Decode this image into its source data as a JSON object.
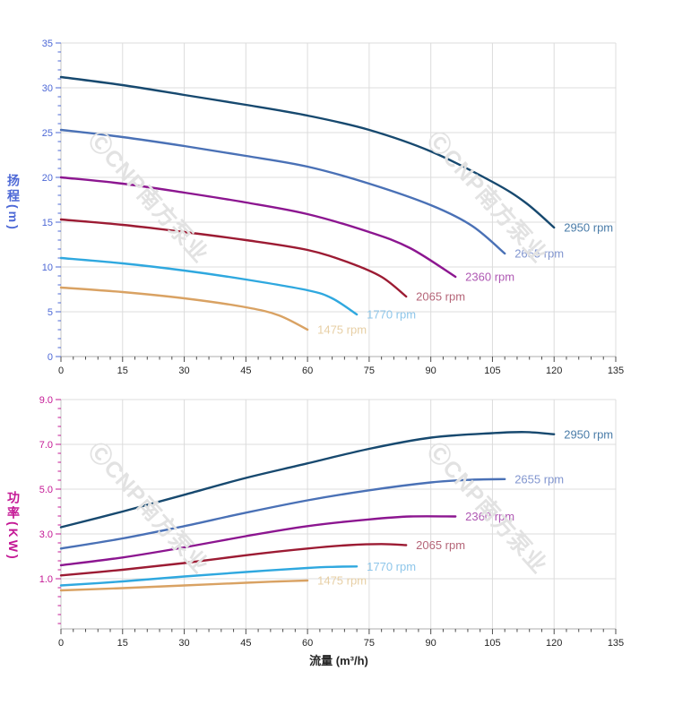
{
  "watermark": {
    "text": "ⒸCNP南方泵业"
  },
  "colors": {
    "background": "#FFFFFF",
    "grid": "#DCDCDC",
    "y_axis_line": "#C4C4C4",
    "x_axis_line": "#ADADAD",
    "x_tick": "#4D4D4D",
    "x_tick_text": "#262626",
    "head_axis": "#4D68D6",
    "power_axis": "#C41895",
    "watermark": "#E2E2E2"
  },
  "chart_data": [
    {
      "id": "head",
      "type": "line",
      "title": "",
      "ytitle": "扬程(m)",
      "xlabel": "",
      "xlim": [
        0,
        135
      ],
      "ylim": [
        0,
        35
      ],
      "axis_color": "#4D68D6",
      "grid": true,
      "x_axis": {
        "tick_values": [
          0,
          15,
          30,
          45,
          60,
          75,
          90,
          105,
          120,
          135
        ],
        "ticks": [
          "0",
          "15",
          "30",
          "45",
          "60",
          "75",
          "90",
          "105",
          "120",
          "135"
        ],
        "minor_step": 3
      },
      "y_axis": {
        "tick_values": [
          0,
          5,
          10,
          15,
          20,
          25,
          30,
          35
        ],
        "ticks": [
          "0",
          "5",
          "10",
          "15",
          "20",
          "25",
          "30",
          "35"
        ],
        "minor_step": 1
      },
      "series": [
        {
          "name": "2950 rpm",
          "color": "#17496F",
          "label_color": "#4A7CA8",
          "points": [
            [
              0,
              31.2
            ],
            [
              15,
              30.3
            ],
            [
              30,
              29.2
            ],
            [
              45,
              28.1
            ],
            [
              60,
              26.9
            ],
            [
              75,
              25.3
            ],
            [
              90,
              22.9
            ],
            [
              105,
              19.5
            ],
            [
              113,
              17.2
            ],
            [
              120,
              14.4
            ]
          ]
        },
        {
          "name": "2655 rpm",
          "color": "#4A71B6",
          "label_color": "#8296CF",
          "points": [
            [
              0,
              25.3
            ],
            [
              15,
              24.5
            ],
            [
              30,
              23.5
            ],
            [
              45,
              22.4
            ],
            [
              60,
              21.2
            ],
            [
              75,
              19.3
            ],
            [
              90,
              16.9
            ],
            [
              100,
              14.6
            ],
            [
              108,
              11.5
            ]
          ]
        },
        {
          "name": "2360 rpm",
          "color": "#8C1690",
          "label_color": "#AF58B3",
          "points": [
            [
              0,
              20.0
            ],
            [
              15,
              19.3
            ],
            [
              30,
              18.3
            ],
            [
              45,
              17.2
            ],
            [
              60,
              15.9
            ],
            [
              75,
              13.9
            ],
            [
              85,
              12.1
            ],
            [
              96,
              8.9
            ]
          ]
        },
        {
          "name": "2065 rpm",
          "color": "#9C1B33",
          "label_color": "#B56578",
          "points": [
            [
              0,
              15.3
            ],
            [
              15,
              14.7
            ],
            [
              30,
              13.9
            ],
            [
              45,
              13.0
            ],
            [
              60,
              11.9
            ],
            [
              70,
              10.5
            ],
            [
              78,
              8.9
            ],
            [
              84,
              6.7
            ]
          ]
        },
        {
          "name": "1770 rpm",
          "color": "#2FA8DF",
          "label_color": "#8EC6EA",
          "points": [
            [
              0,
              11.0
            ],
            [
              15,
              10.4
            ],
            [
              30,
              9.6
            ],
            [
              45,
              8.6
            ],
            [
              60,
              7.4
            ],
            [
              66,
              6.5
            ],
            [
              72,
              4.7
            ]
          ]
        },
        {
          "name": "1475 rpm",
          "color": "#D9A263",
          "label_color": "#E7CFA5",
          "points": [
            [
              0,
              7.7
            ],
            [
              15,
              7.2
            ],
            [
              30,
              6.5
            ],
            [
              45,
              5.5
            ],
            [
              53,
              4.6
            ],
            [
              60,
              3.0
            ]
          ]
        }
      ]
    },
    {
      "id": "power",
      "type": "line",
      "title": "",
      "ytitle": "功率(KW)",
      "xlabel": "流量 (m³/h)",
      "xlim": [
        0,
        135
      ],
      "ylim": [
        -1.24,
        9.0
      ],
      "axis_color": "#C41895",
      "grid": true,
      "x_axis": {
        "tick_values": [
          0,
          15,
          30,
          45,
          60,
          75,
          90,
          105,
          120,
          135
        ],
        "ticks": [
          "0",
          "15",
          "30",
          "45",
          "60",
          "75",
          "90",
          "105",
          "120",
          "135"
        ],
        "minor_step": 3
      },
      "y_axis": {
        "tick_values": [
          1,
          3,
          5,
          7,
          9
        ],
        "ticks": [
          "1.0",
          "3.0",
          "5.0",
          "7.0",
          "9.0"
        ],
        "minor_step": 0.4
      },
      "series": [
        {
          "name": "2950 rpm",
          "color": "#17496F",
          "label_color": "#4A7CA8",
          "points": [
            [
              0,
              3.3
            ],
            [
              15,
              4.0
            ],
            [
              30,
              4.75
            ],
            [
              45,
              5.5
            ],
            [
              60,
              6.15
            ],
            [
              75,
              6.8
            ],
            [
              90,
              7.3
            ],
            [
              105,
              7.5
            ],
            [
              113,
              7.55
            ],
            [
              120,
              7.45
            ]
          ]
        },
        {
          "name": "2655 rpm",
          "color": "#4A71B6",
          "label_color": "#8296CF",
          "points": [
            [
              0,
              2.35
            ],
            [
              15,
              2.8
            ],
            [
              30,
              3.35
            ],
            [
              45,
              3.95
            ],
            [
              60,
              4.5
            ],
            [
              75,
              4.95
            ],
            [
              90,
              5.3
            ],
            [
              100,
              5.42
            ],
            [
              108,
              5.45
            ]
          ]
        },
        {
          "name": "2360 rpm",
          "color": "#8C1690",
          "label_color": "#AF58B3",
          "points": [
            [
              0,
              1.6
            ],
            [
              15,
              1.95
            ],
            [
              30,
              2.4
            ],
            [
              45,
              2.9
            ],
            [
              60,
              3.35
            ],
            [
              75,
              3.65
            ],
            [
              85,
              3.78
            ],
            [
              96,
              3.78
            ]
          ]
        },
        {
          "name": "2065 rpm",
          "color": "#9C1B33",
          "label_color": "#B56578",
          "points": [
            [
              0,
              1.15
            ],
            [
              15,
              1.4
            ],
            [
              30,
              1.7
            ],
            [
              45,
              2.05
            ],
            [
              60,
              2.35
            ],
            [
              70,
              2.5
            ],
            [
              78,
              2.55
            ],
            [
              84,
              2.5
            ]
          ]
        },
        {
          "name": "1770 rpm",
          "color": "#2FA8DF",
          "label_color": "#8EC6EA",
          "points": [
            [
              0,
              0.7
            ],
            [
              15,
              0.88
            ],
            [
              30,
              1.1
            ],
            [
              45,
              1.3
            ],
            [
              60,
              1.48
            ],
            [
              66,
              1.53
            ],
            [
              72,
              1.55
            ]
          ]
        },
        {
          "name": "1475 rpm",
          "color": "#D9A263",
          "label_color": "#E7CFA5",
          "points": [
            [
              0,
              0.48
            ],
            [
              15,
              0.58
            ],
            [
              30,
              0.7
            ],
            [
              45,
              0.82
            ],
            [
              53,
              0.88
            ],
            [
              60,
              0.92
            ]
          ]
        }
      ]
    }
  ]
}
